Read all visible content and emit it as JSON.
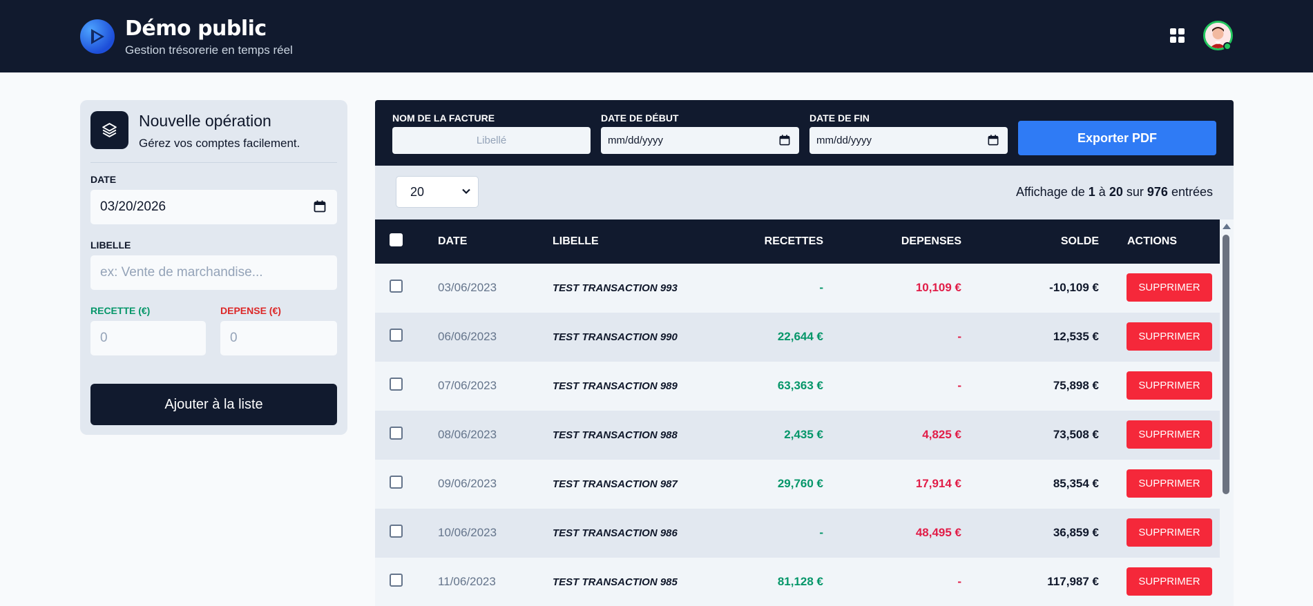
{
  "header": {
    "title": "Démo public",
    "subtitle": "Gestion trésorerie en temps réel"
  },
  "form": {
    "title": "Nouvelle opération",
    "subtitle": "Gérez vos comptes facilement.",
    "date_label": "DATE",
    "date_value": "03/20/2026",
    "libelle_label": "LIBELLE",
    "libelle_placeholder": "ex: Vente de marchandise...",
    "recette_label": "RECETTE (€)",
    "recette_placeholder": "0",
    "depense_label": "DEPENSE (€)",
    "depense_placeholder": "0",
    "submit_label": "Ajouter à  la liste"
  },
  "filters": {
    "invoice_label": "NOM DE LA FACTURE",
    "invoice_placeholder": "Libellé",
    "start_label": "DATE DE DÉBUT",
    "start_placeholder": "mm/dd/yyyy",
    "end_label": "DATE DE FIN",
    "end_placeholder": "mm/dd/yyyy",
    "export_label": "Exporter PDF"
  },
  "listing": {
    "page_size": "20",
    "showing_prefix": "Affichage de",
    "from": "1",
    "to_word": "à",
    "to": "20",
    "of_word": "sur",
    "total": "976",
    "suffix": "entrées"
  },
  "table": {
    "headers": {
      "date": "DATE",
      "libelle": "LIBELLE",
      "recettes": "RECETTES",
      "depenses": "DEPENSES",
      "solde": "SOLDE",
      "actions": "ACTIONS"
    },
    "delete_label": "SUPPRIMER",
    "rows": [
      {
        "date": "03/06/2023",
        "libelle": "TEST TRANSACTION 993",
        "recette": "-",
        "depense": "10,109 €",
        "solde": "-10,109 €"
      },
      {
        "date": "06/06/2023",
        "libelle": "TEST TRANSACTION 990",
        "recette": "22,644 €",
        "depense": "-",
        "solde": "12,535 €"
      },
      {
        "date": "07/06/2023",
        "libelle": "TEST TRANSACTION 989",
        "recette": "63,363 €",
        "depense": "-",
        "solde": "75,898 €"
      },
      {
        "date": "08/06/2023",
        "libelle": "TEST TRANSACTION 988",
        "recette": "2,435 €",
        "depense": "4,825 €",
        "solde": "73,508 €"
      },
      {
        "date": "09/06/2023",
        "libelle": "TEST TRANSACTION 987",
        "recette": "29,760 €",
        "depense": "17,914 €",
        "solde": "85,354 €"
      },
      {
        "date": "10/06/2023",
        "libelle": "TEST TRANSACTION 986",
        "recette": "-",
        "depense": "48,495 €",
        "solde": "36,859 €"
      },
      {
        "date": "11/06/2023",
        "libelle": "TEST TRANSACTION 985",
        "recette": "81,128 €",
        "depense": "-",
        "solde": "117,987 €"
      }
    ]
  },
  "colors": {
    "navy": "#111a2e",
    "green": "#059669",
    "red": "#e11d48",
    "delete": "#f5283a",
    "export": "#2f7bf5"
  }
}
